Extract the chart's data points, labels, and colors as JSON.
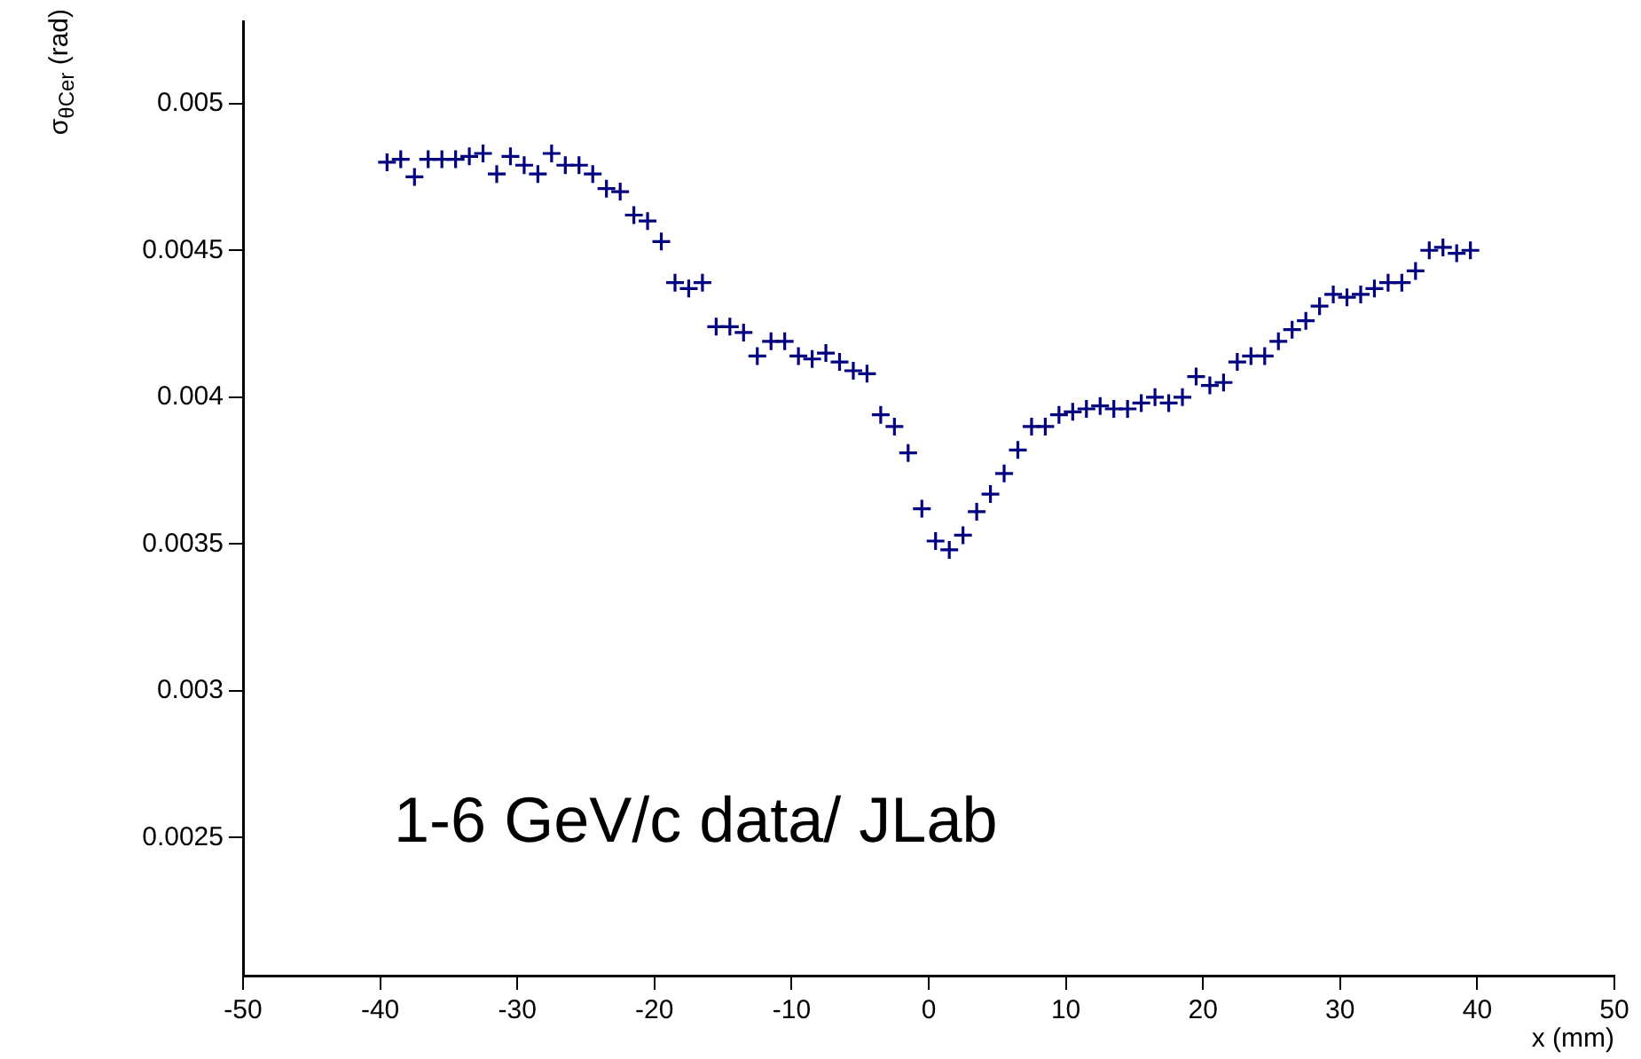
{
  "chart_data": {
    "type": "scatter",
    "xlabel": "x (mm)",
    "ylabel": "σ$_{θCer}$ (rad)",
    "annotations": [
      "1-6 GeV/c data/ JLab"
    ],
    "x": [
      -39.5,
      -38.5,
      -37.5,
      -36.5,
      -35.5,
      -34.5,
      -33.5,
      -32.5,
      -31.5,
      -30.5,
      -29.5,
      -28.5,
      -27.5,
      -26.5,
      -25.5,
      -24.5,
      -23.5,
      -22.5,
      -21.5,
      -20.5,
      -19.5,
      -18.5,
      -17.5,
      -16.5,
      -15.5,
      -14.5,
      -13.5,
      -12.5,
      -11.5,
      -10.5,
      -9.5,
      -8.5,
      -7.5,
      -6.5,
      -5.5,
      -4.5,
      -3.5,
      -2.5,
      -1.5,
      -0.5,
      0.5,
      1.5,
      2.5,
      3.5,
      4.5,
      5.5,
      6.5,
      7.5,
      8.5,
      9.5,
      10.5,
      11.5,
      12.5,
      13.5,
      14.5,
      15.5,
      16.5,
      17.5,
      18.5,
      19.5,
      20.5,
      21.5,
      22.5,
      23.5,
      24.5,
      25.5,
      26.5,
      27.5,
      28.5,
      29.5,
      30.5,
      31.5,
      32.5,
      33.5,
      34.5,
      35.5,
      36.5,
      37.5,
      38.5,
      39.5
    ],
    "series": [
      {
        "color": "#000080",
        "values": [
          0.0048,
          0.00481,
          0.00475,
          0.00481,
          0.00481,
          0.00481,
          0.00482,
          0.00483,
          0.00476,
          0.00482,
          0.00479,
          0.00476,
          0.00483,
          0.00479,
          0.00479,
          0.00476,
          0.00471,
          0.0047,
          0.00462,
          0.0046,
          0.00453,
          0.00439,
          0.00437,
          0.00439,
          0.00424,
          0.00424,
          0.00422,
          0.00414,
          0.00419,
          0.00419,
          0.00414,
          0.00413,
          0.00415,
          0.00412,
          0.00409,
          0.00408,
          0.00394,
          0.0039,
          0.00381,
          0.00362,
          0.00351,
          0.00348,
          0.00353,
          0.00361,
          0.00367,
          0.00374,
          0.00382,
          0.0039,
          0.0039,
          0.00394,
          0.00395,
          0.00396,
          0.00397,
          0.00396,
          0.00396,
          0.00398,
          0.004,
          0.00398,
          0.004,
          0.00407,
          0.00404,
          0.00405,
          0.00412,
          0.00414,
          0.00414,
          0.00419,
          0.00423,
          0.00426,
          0.00431,
          0.00435,
          0.00434,
          0.00435,
          0.00437,
          0.00439,
          0.00439,
          0.00443,
          0.0045,
          0.00451,
          0.00449,
          0.0045
        ]
      }
    ],
    "xlim": [
      -50,
      50
    ],
    "xticks": [
      -50,
      -40,
      -30,
      -20,
      -10,
      0,
      10,
      20,
      30,
      40,
      50
    ],
    "ylim": [
      0.00203,
      0.00528
    ],
    "yticks": [
      0.0025,
      0.003,
      0.0035,
      0.004,
      0.0045,
      0.005
    ],
    "grid": false,
    "legend": false,
    "marker": "cross"
  }
}
